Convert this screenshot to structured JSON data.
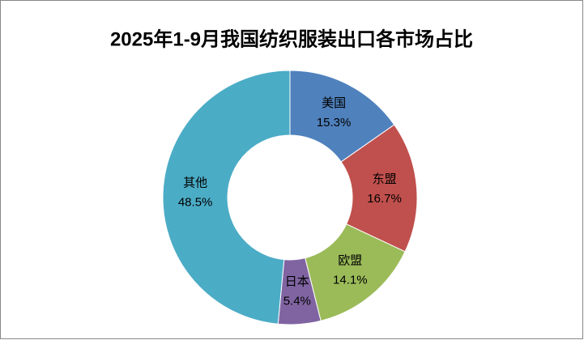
{
  "chart_data": {
    "type": "donut",
    "title": "2025年1-9月我国纺织服装出口各市场占比",
    "categories": [
      "美国",
      "东盟",
      "欧盟",
      "日本",
      "其他"
    ],
    "values": [
      15.3,
      16.7,
      14.1,
      5.4,
      48.5
    ],
    "value_labels": [
      "15.3%",
      "16.7%",
      "14.1%",
      "5.4%",
      "48.5%"
    ],
    "colors": [
      "#4f81bd",
      "#c0504d",
      "#9bbb59",
      "#8064a2",
      "#4bacc6"
    ]
  }
}
